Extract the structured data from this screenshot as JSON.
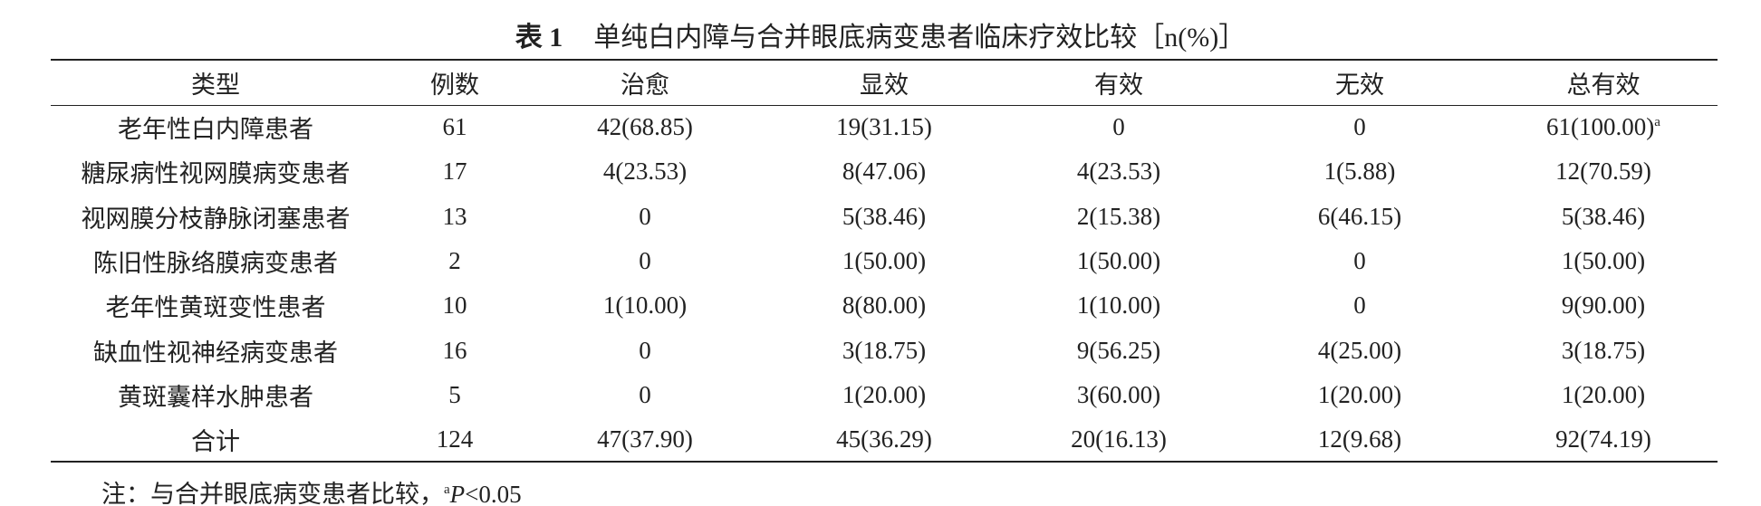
{
  "title": {
    "label": "表 1",
    "text": "单纯白内障与合并眼底病变患者临床疗效比较［n(%)］"
  },
  "table": {
    "header": [
      "类型",
      "例数",
      "治愈",
      "显效",
      "有效",
      "无效",
      "总有效"
    ],
    "rows": [
      [
        "老年性白内障患者",
        "61",
        "42(68.85)",
        "19(31.15)",
        "0",
        "0",
        {
          "text": "61(100.00)",
          "sup": "a"
        }
      ],
      [
        "糖尿病性视网膜病变患者",
        "17",
        "4(23.53)",
        "8(47.06)",
        "4(23.53)",
        "1(5.88)",
        "12(70.59)"
      ],
      [
        "视网膜分枝静脉闭塞患者",
        "13",
        "0",
        "5(38.46)",
        "2(15.38)",
        "6(46.15)",
        "5(38.46)"
      ],
      [
        "陈旧性脉络膜病变患者",
        "2",
        "0",
        "1(50.00)",
        "1(50.00)",
        "0",
        "1(50.00)"
      ],
      [
        "老年性黄斑变性患者",
        "10",
        "1(10.00)",
        "8(80.00)",
        "1(10.00)",
        "0",
        "9(90.00)"
      ],
      [
        "缺血性视神经病变患者",
        "16",
        "0",
        "3(18.75)",
        "9(56.25)",
        "4(25.00)",
        "3(18.75)"
      ],
      [
        "黄斑囊样水肿患者",
        "5",
        "0",
        "1(20.00)",
        "3(60.00)",
        "1(20.00)",
        "1(20.00)"
      ],
      [
        "合计",
        "124",
        "47(37.90)",
        "45(36.29)",
        "20(16.13)",
        "12(9.68)",
        "92(74.19)"
      ]
    ]
  },
  "note": {
    "prefix": "注：与合并眼底病变患者比较，",
    "sup": "a",
    "italic": "P",
    "suffix": "<0.05"
  }
}
